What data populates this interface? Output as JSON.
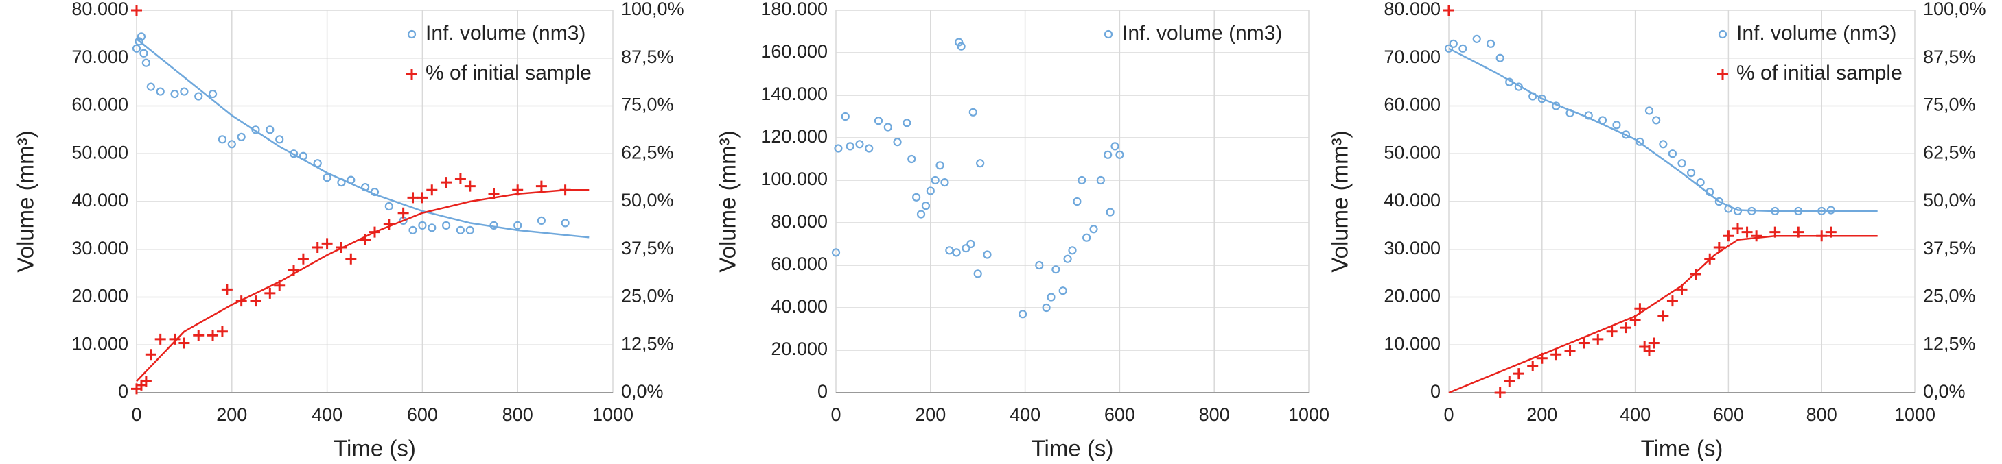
{
  "chart_data": [
    {
      "type": "scatter",
      "x_label": "Time (s)",
      "y_label": "Volume (mm³)",
      "xlim": [
        0,
        1000
      ],
      "xticks": [
        0,
        200,
        400,
        600,
        800,
        1000
      ],
      "ylim": [
        0,
        80000
      ],
      "yticks": [
        0,
        {
          "value": 10000,
          "label": "10.000"
        },
        {
          "value": 20000,
          "label": "20.000"
        },
        {
          "value": 30000,
          "label": "30.000"
        },
        {
          "value": 40000,
          "label": "40.000"
        },
        {
          "value": 50000,
          "label": "50.000"
        },
        {
          "value": 60000,
          "label": "60.000"
        },
        {
          "value": 70000,
          "label": "70.000"
        },
        {
          "value": 80000,
          "label": "80.000"
        }
      ],
      "y2lim": [
        0,
        100
      ],
      "y2ticks": [
        {
          "value": 0,
          "label": "0,0%"
        },
        {
          "value": 12.5,
          "label": "12,5%"
        },
        {
          "value": 25,
          "label": "25,0%"
        },
        {
          "value": 37.5,
          "label": "37,5%"
        },
        {
          "value": 50,
          "label": "50,0%"
        },
        {
          "value": 62.5,
          "label": "62,5%"
        },
        {
          "value": 75,
          "label": "75,0%"
        },
        {
          "value": 87.5,
          "label": "87,5%"
        },
        {
          "value": 100,
          "label": "100,0%"
        }
      ],
      "grid": true,
      "series": [
        {
          "name": "Inf. volume (nm3)",
          "color": "#6fa8dc",
          "marker": "circle",
          "x": [
            0,
            5,
            10,
            15,
            20,
            30,
            50,
            80,
            100,
            130,
            160,
            180,
            200,
            220,
            250,
            280,
            300,
            330,
            350,
            380,
            400,
            430,
            450,
            480,
            500,
            530,
            560,
            580,
            600,
            620,
            650,
            680,
            700,
            750,
            800,
            850,
            900
          ],
          "values": [
            72000,
            73500,
            74500,
            71000,
            69000,
            64000,
            63000,
            62500,
            63000,
            62000,
            62500,
            53000,
            52000,
            53500,
            55000,
            55000,
            53000,
            50000,
            49500,
            48000,
            45000,
            44000,
            44500,
            43000,
            42000,
            39000,
            36000,
            34000,
            35000,
            34500,
            35000,
            34000,
            34000,
            35000,
            35000,
            36000,
            35500
          ],
          "trend_x": [
            0,
            100,
            200,
            300,
            400,
            500,
            600,
            700,
            800,
            900,
            950
          ],
          "trend_values": [
            74000,
            66000,
            58000,
            51500,
            46000,
            41500,
            38000,
            35500,
            34000,
            33000,
            32500
          ]
        },
        {
          "name": "% of initial sample",
          "color": "#e8221c",
          "marker": "plus",
          "axis": "y2",
          "x": [
            0,
            0,
            10,
            20,
            30,
            50,
            80,
            100,
            130,
            160,
            180,
            190,
            220,
            250,
            280,
            300,
            330,
            350,
            380,
            400,
            430,
            450,
            480,
            500,
            530,
            560,
            580,
            600,
            620,
            650,
            680,
            700,
            750,
            800,
            850,
            900
          ],
          "values": [
            100,
            1,
            2,
            3,
            10,
            14,
            14,
            13,
            15,
            15,
            16,
            27,
            24,
            24,
            26,
            28,
            32,
            35,
            38,
            39,
            38,
            35,
            40,
            42,
            44,
            47,
            51,
            51,
            53,
            55,
            56,
            54,
            52,
            53,
            54,
            53
          ],
          "trend_x": [
            0,
            100,
            200,
            300,
            400,
            500,
            600,
            700,
            800,
            900,
            950
          ],
          "trend_values": [
            3,
            16,
            23,
            29,
            36,
            42,
            47,
            50,
            52,
            53,
            53
          ]
        }
      ]
    },
    {
      "type": "scatter",
      "x_label": "Time (s)",
      "y_label": "Volume (mm³)",
      "xlim": [
        0,
        1000
      ],
      "xticks": [
        0,
        200,
        400,
        600,
        800,
        1000
      ],
      "ylim": [
        0,
        180000
      ],
      "yticks": [
        0,
        {
          "value": 20000,
          "label": "20.000"
        },
        {
          "value": 40000,
          "label": "40.000"
        },
        {
          "value": 60000,
          "label": "60.000"
        },
        {
          "value": 80000,
          "label": "80.000"
        },
        {
          "value": 100000,
          "label": "100.000"
        },
        {
          "value": 120000,
          "label": "120.000"
        },
        {
          "value": 140000,
          "label": "140.000"
        },
        {
          "value": 160000,
          "label": "160.000"
        },
        {
          "value": 180000,
          "label": "180.000"
        }
      ],
      "grid": true,
      "series": [
        {
          "name": "Inf. volume (nm3)",
          "color": "#6fa8dc",
          "marker": "circle",
          "x": [
            0,
            5,
            20,
            30,
            50,
            70,
            90,
            110,
            130,
            150,
            160,
            170,
            180,
            190,
            200,
            210,
            220,
            230,
            240,
            255,
            260,
            265,
            275,
            285,
            290,
            300,
            305,
            320,
            395,
            430,
            445,
            455,
            465,
            480,
            490,
            500,
            510,
            520,
            530,
            545,
            560,
            575,
            580,
            590,
            600
          ],
          "values": [
            66000,
            115000,
            130000,
            116000,
            117000,
            115000,
            128000,
            125000,
            118000,
            127000,
            110000,
            92000,
            84000,
            88000,
            95000,
            100000,
            107000,
            99000,
            67000,
            66000,
            165000,
            163000,
            68000,
            70000,
            132000,
            56000,
            108000,
            65000,
            37000,
            60000,
            40000,
            45000,
            58000,
            48000,
            63000,
            67000,
            90000,
            100000,
            73000,
            77000,
            100000,
            112000,
            85000,
            116000,
            112000
          ]
        }
      ]
    },
    {
      "type": "scatter",
      "x_label": "Time (s)",
      "y_label": "Volume (mm³)",
      "xlim": [
        0,
        1000
      ],
      "xticks": [
        0,
        200,
        400,
        600,
        800,
        1000
      ],
      "ylim": [
        0,
        80000
      ],
      "yticks": [
        0,
        {
          "value": 10000,
          "label": "10.000"
        },
        {
          "value": 20000,
          "label": "20.000"
        },
        {
          "value": 30000,
          "label": "30.000"
        },
        {
          "value": 40000,
          "label": "40.000"
        },
        {
          "value": 50000,
          "label": "50.000"
        },
        {
          "value": 60000,
          "label": "60.000"
        },
        {
          "value": 70000,
          "label": "70.000"
        },
        {
          "value": 80000,
          "label": "80.000"
        }
      ],
      "y2lim": [
        0,
        100
      ],
      "y2ticks": [
        {
          "value": 0,
          "label": "0,0%"
        },
        {
          "value": 12.5,
          "label": "12,5%"
        },
        {
          "value": 25,
          "label": "25,0%"
        },
        {
          "value": 37.5,
          "label": "37,5%"
        },
        {
          "value": 50,
          "label": "50,0%"
        },
        {
          "value": 62.5,
          "label": "62,5%"
        },
        {
          "value": 75,
          "label": "75,0%"
        },
        {
          "value": 87.5,
          "label": "87,5%"
        },
        {
          "value": 100,
          "label": "100,0%"
        }
      ],
      "grid": true,
      "series": [
        {
          "name": "Inf. volume (nm3)",
          "color": "#6fa8dc",
          "marker": "circle",
          "x": [
            0,
            10,
            30,
            60,
            90,
            110,
            130,
            150,
            180,
            200,
            230,
            260,
            300,
            330,
            360,
            380,
            410,
            430,
            445,
            460,
            480,
            500,
            520,
            540,
            560,
            580,
            600,
            620,
            650,
            700,
            750,
            800,
            820
          ],
          "values": [
            72000,
            73000,
            72000,
            74000,
            73000,
            70000,
            65000,
            64000,
            62000,
            61500,
            60000,
            58500,
            58000,
            57000,
            56000,
            54000,
            52500,
            59000,
            57000,
            52000,
            50000,
            48000,
            46000,
            44000,
            42000,
            40000,
            38500,
            38000,
            38000,
            38000,
            38000,
            38000,
            38200
          ],
          "trend_x": [
            0,
            100,
            200,
            300,
            400,
            500,
            580,
            620,
            700,
            920
          ],
          "trend_values": [
            72000,
            67000,
            61500,
            57500,
            53000,
            46000,
            40000,
            38200,
            38000,
            38000
          ]
        },
        {
          "name": "% of initial sample",
          "color": "#e8221c",
          "marker": "plus",
          "axis": "y2",
          "x": [
            0,
            110,
            130,
            150,
            180,
            200,
            230,
            260,
            290,
            320,
            350,
            380,
            400,
            410,
            420,
            430,
            440,
            460,
            480,
            500,
            530,
            560,
            580,
            600,
            620,
            640,
            660,
            700,
            750,
            800,
            820
          ],
          "values": [
            100,
            0,
            3,
            5,
            7,
            9,
            10,
            11,
            13,
            14,
            16,
            17,
            19,
            22,
            12,
            11,
            13,
            20,
            24,
            27,
            31,
            35,
            38,
            41,
            43,
            42,
            41,
            42,
            42,
            41,
            42
          ],
          "trend_x": [
            0,
            100,
            200,
            300,
            400,
            500,
            570,
            620,
            700,
            920
          ],
          "trend_values": [
            0,
            5,
            10,
            15,
            20,
            28,
            36,
            40,
            41,
            41
          ]
        }
      ]
    }
  ]
}
